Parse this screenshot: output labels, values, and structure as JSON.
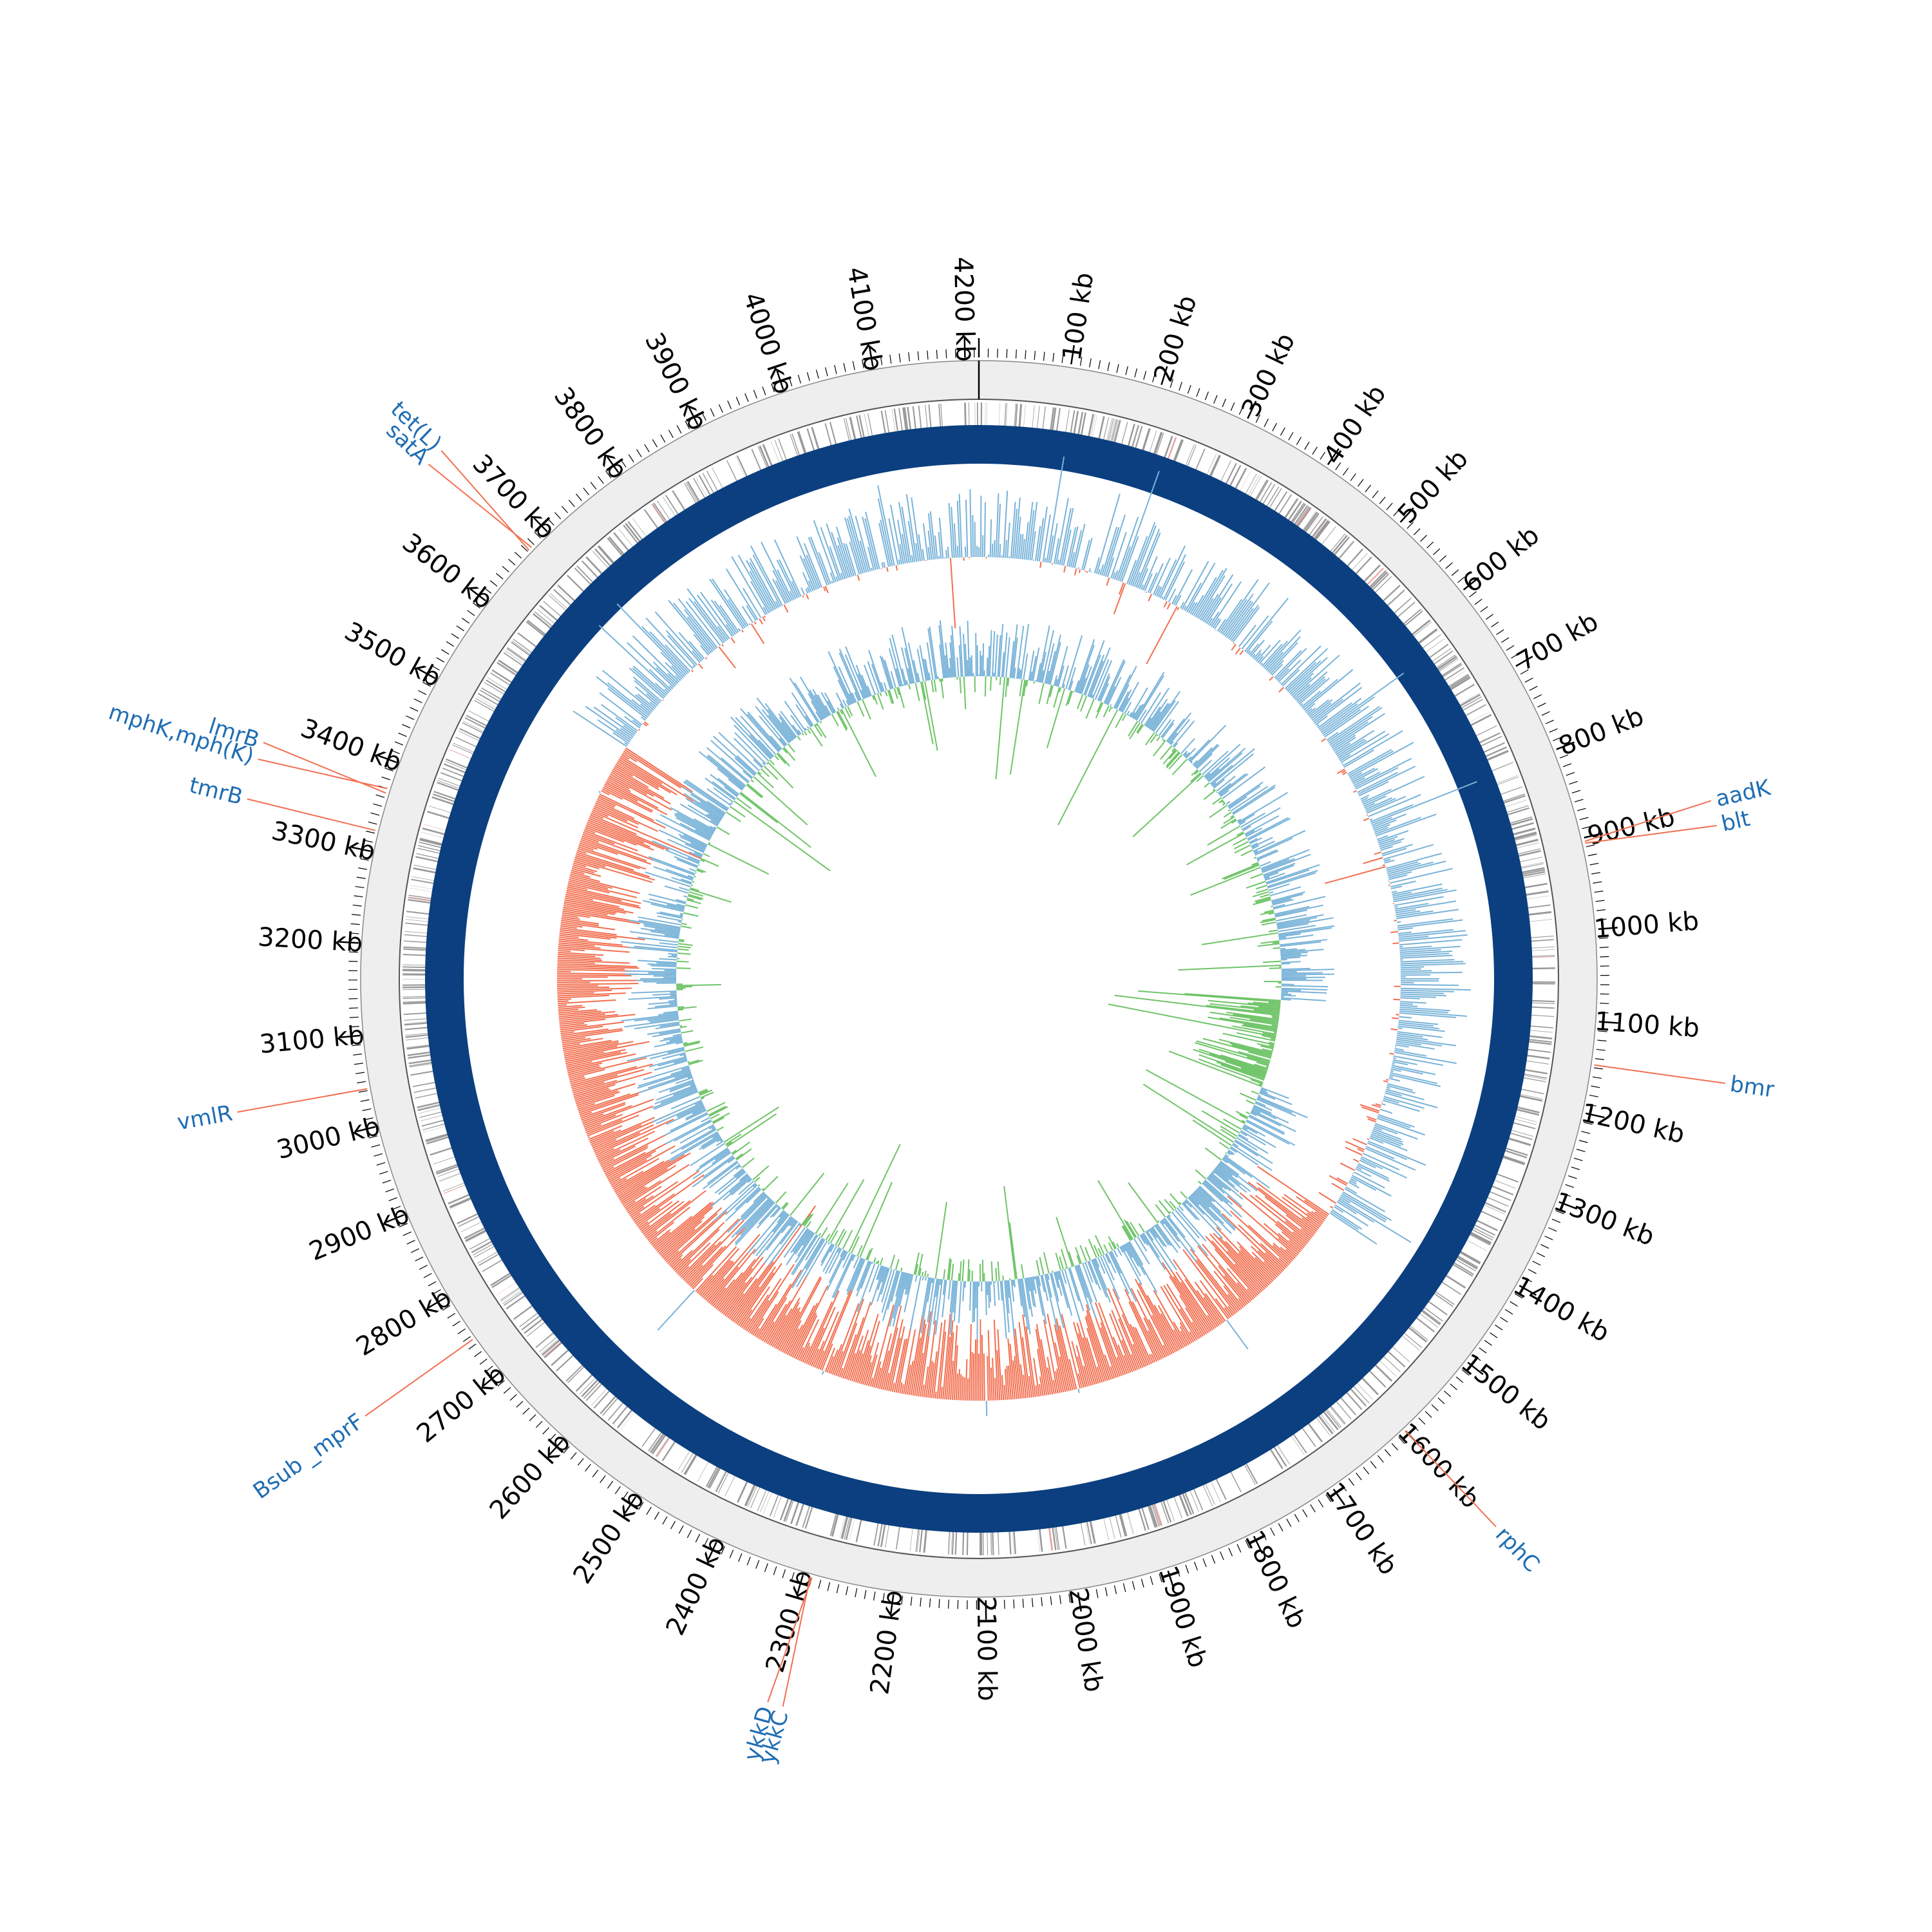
{
  "genome": {
    "length_kb": 4215,
    "tick_major_kb": 100,
    "tick_minor_kb": 10,
    "tick_unit": "kb",
    "first_labeled_tick_kb": 100,
    "last_labeled_tick_kb": 4200
  },
  "colors": {
    "outer_ring_fill": "#eeeeee",
    "feature_gray": "#999999",
    "feature_pink": "#e8a0a0",
    "backbone_ring": "#0b3f7f",
    "gc_content_above": "#79b3d8",
    "gc_content_below": "#f26f50",
    "gc_skew_positive": "#79b3d8",
    "gc_skew_negative": "#6fc468",
    "annotation_text": "#1f6db3",
    "annotation_line": "#f26f50",
    "tick_color": "#000000"
  },
  "resistance_genes": [
    {
      "name": "satA",
      "position_kb": 3676,
      "label_side": "left"
    },
    {
      "name": "tet(L)",
      "position_kb": 3672,
      "label_side": "left"
    },
    {
      "name": "mphK,mph(K)",
      "position_kb": 3370,
      "label_side": "left"
    },
    {
      "name": "lmrB",
      "position_kb": 3365,
      "label_side": "left"
    },
    {
      "name": "tmrB",
      "position_kb": 3323,
      "label_side": "left"
    },
    {
      "name": "vmlR",
      "position_kb": 3042,
      "label_side": "left"
    },
    {
      "name": "Bsub _mprF",
      "position_kb": 2746,
      "label_side": "left"
    },
    {
      "name": "ykkC",
      "position_kb": 2292,
      "label_side": "bottom"
    },
    {
      "name": "ykkD",
      "position_kb": 2290,
      "label_side": "bottom"
    },
    {
      "name": "rphC",
      "position_kb": 1600,
      "label_side": "right"
    },
    {
      "name": "bmr",
      "position_kb": 1147,
      "label_side": "right"
    },
    {
      "name": "aadK",
      "position_kb": 904,
      "label_side": "right"
    },
    {
      "name": "blt",
      "position_kb": 906,
      "label_side": "right"
    }
  ]
}
